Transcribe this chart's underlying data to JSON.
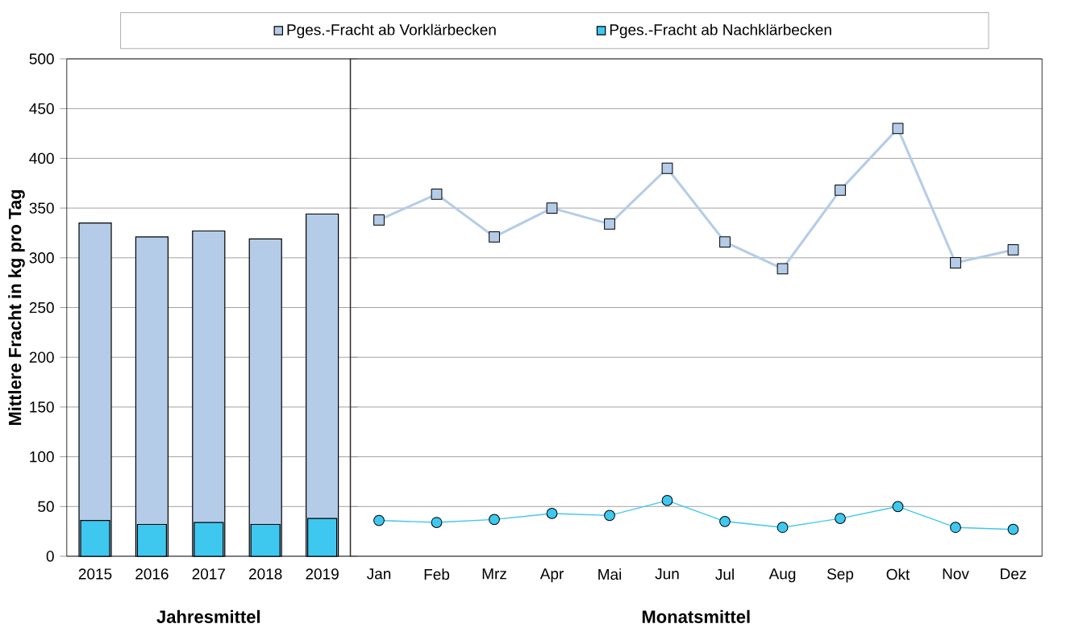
{
  "chart_data": [
    {
      "type": "bar",
      "ylabel": "Mittlere Fracht in kg pro Tag",
      "xlabel": "Jahresmittel",
      "categories": [
        "2015",
        "2016",
        "2017",
        "2018",
        "2019"
      ],
      "series": [
        {
          "name": "Pges.-Fracht ab Vorklärbecken",
          "color": "#b4cce8",
          "values": [
            335,
            321,
            327,
            319,
            344
          ]
        },
        {
          "name": "Pges.-Fracht ab Nachklärbecken",
          "color": "#3ec8f0",
          "values": [
            36,
            32,
            34,
            32,
            38
          ]
        }
      ],
      "ylim": [
        0,
        500
      ],
      "yticks": [
        0,
        50,
        100,
        150,
        200,
        250,
        300,
        350,
        400,
        450,
        500
      ],
      "grid": "y",
      "legend": "top"
    },
    {
      "type": "line",
      "xlabel": "Monatsmittel",
      "categories": [
        "Jan",
        "Feb",
        "Mrz",
        "Apr",
        "Mai",
        "Jun",
        "Jul",
        "Aug",
        "Sep",
        "Okt",
        "Nov",
        "Dez"
      ],
      "series": [
        {
          "color": "#b4cce8",
          "marker": "square",
          "values": [
            338,
            364,
            321,
            350,
            334,
            390,
            316,
            289,
            368,
            430,
            295,
            308
          ]
        },
        {
          "color": "#3ec8f0",
          "marker": "circle",
          "values": [
            36,
            34,
            37,
            43,
            41,
            56,
            35,
            29,
            38,
            50,
            29,
            27
          ]
        }
      ],
      "ylim": [
        0,
        500
      ],
      "yticks": [
        0,
        50,
        100,
        150,
        200,
        250,
        300,
        350,
        400,
        450,
        500
      ],
      "grid": "y",
      "tick_labels": "x"
    }
  ]
}
